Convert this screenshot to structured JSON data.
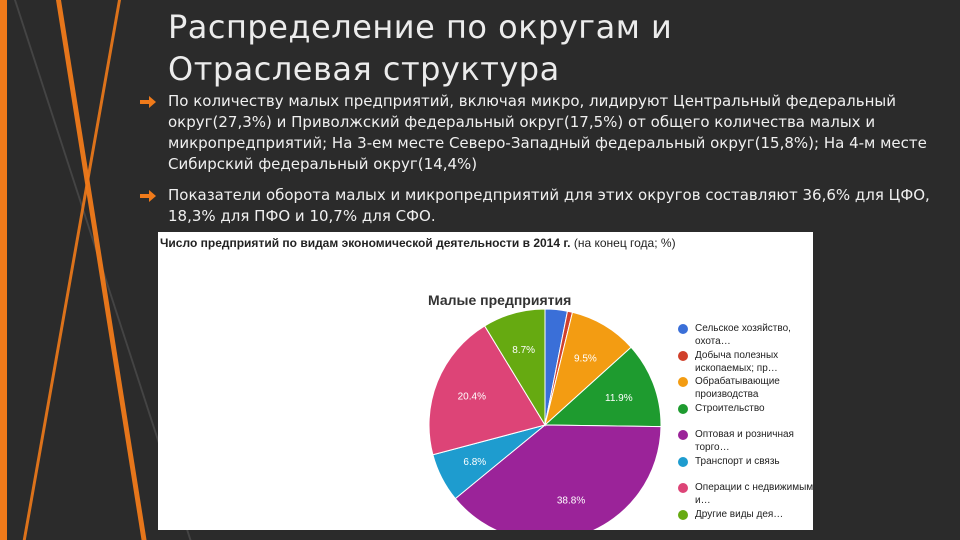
{
  "slide": {
    "title_line1": "Распределение по округам и",
    "title_line2": "Отраслевая структура",
    "bullets": [
      "По количеству малых предприятий, включая микро, лидируют Центральный федеральный округ(27,3%) и Приволжский федеральный округ(17,5%) от общего количества малых и микропредприятий; На 3-ем месте Северо-Западный федеральный округ(15,8%); На 4-м месте Сибирский федеральный округ(14,4%)",
      "Показатели оборота малых и микропредприятий для этих округов составляют 36,6% для ЦФО, 18,3% для ПФО и 10,7% для СФО."
    ],
    "accent_color": "#f07a1a",
    "bullet_icon": "arrow-right-icon"
  },
  "chart_header": {
    "bold": "Число предприятий по видам экономической деятельности в 2014 г.",
    "normal": " (на конец года; %)"
  },
  "chart_data": {
    "type": "pie",
    "title": "Малые предприятия",
    "slices": [
      {
        "label": "Сельское хозяйство, охота…",
        "value": 3.1,
        "display": "",
        "color": "#3a6fd8"
      },
      {
        "label": "Добыча полезных ископаемых; пр…",
        "value": 0.7,
        "display": "",
        "color": "#d0402b"
      },
      {
        "label": "Обрабатывающие производства",
        "value": 9.5,
        "display": "9.5%",
        "color": "#f39c12"
      },
      {
        "label": "Строительство",
        "value": 11.9,
        "display": "11.9%",
        "color": "#1e9b2f"
      },
      {
        "label": "Оптовая и розничная торго…",
        "value": 38.8,
        "display": "38.8%",
        "color": "#9b2399"
      },
      {
        "label": "Транспорт и связь",
        "value": 6.8,
        "display": "6.8%",
        "color": "#1e9ccf"
      },
      {
        "label": "Операции с недвижимым и…",
        "value": 20.4,
        "display": "20.4%",
        "color": "#dd4477"
      },
      {
        "label": "Другие виды дея…",
        "value": 8.7,
        "display": "8.7%",
        "color": "#66aa11"
      }
    ]
  }
}
